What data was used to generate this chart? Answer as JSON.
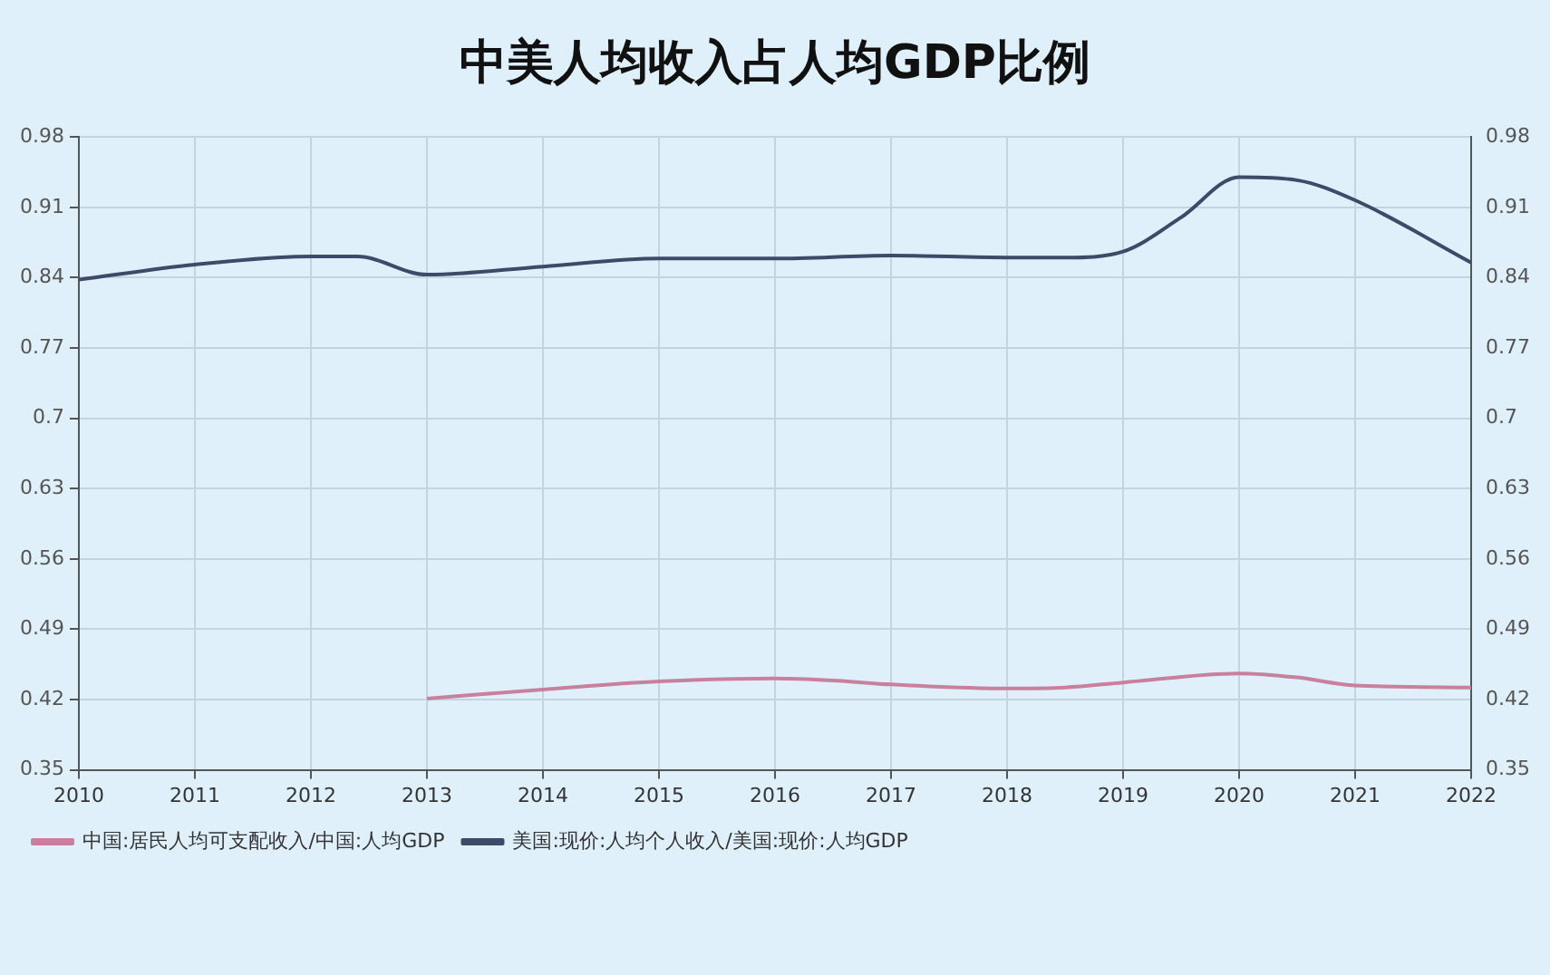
{
  "chart_data": {
    "type": "line",
    "title": "中美人均收入占人均GDP比例",
    "series": [
      {
        "name": "中国:居民人均可支配收入/中国:人均GDP",
        "color": "#c9809c",
        "x": [
          2013,
          2014,
          2015,
          2016,
          2016.5,
          2017,
          2018,
          2018.5,
          2019,
          2020,
          2020.5,
          2021,
          2022
        ],
        "values": [
          0.421,
          0.43,
          0.438,
          0.441,
          0.439,
          0.435,
          0.431,
          0.432,
          0.437,
          0.446,
          0.442,
          0.434,
          0.432
        ]
      },
      {
        "name": "美国:现价:人均个人收入/美国:现价:人均GDP",
        "color": "#3e4a68",
        "x": [
          2010,
          2011,
          2012,
          2012.4,
          2013,
          2014,
          2015,
          2016,
          2017,
          2018,
          2018.5,
          2019,
          2019.5,
          2020,
          2020.5,
          2021,
          2022
        ],
        "values": [
          0.838,
          0.853,
          0.861,
          0.861,
          0.843,
          0.851,
          0.859,
          0.859,
          0.862,
          0.86,
          0.86,
          0.866,
          0.9,
          0.94,
          0.937,
          0.917,
          0.855
        ]
      }
    ],
    "xlim": [
      2010,
      2022
    ],
    "xticks": [
      2010,
      2011,
      2012,
      2013,
      2014,
      2015,
      2016,
      2017,
      2018,
      2019,
      2020,
      2021,
      2022
    ],
    "ylim": [
      0.35,
      0.98
    ],
    "yticks": [
      0.35,
      0.42,
      0.49,
      0.56,
      0.63,
      0.7,
      0.77,
      0.84,
      0.91,
      0.98
    ],
    "y2lim": [
      0.35,
      0.98
    ],
    "y2ticks": [
      0.35,
      0.42,
      0.49,
      0.56,
      0.63,
      0.7,
      0.77,
      0.84,
      0.91,
      0.98
    ],
    "grid": true,
    "legend": "bottom",
    "marker": "none",
    "line_style": "solid"
  }
}
